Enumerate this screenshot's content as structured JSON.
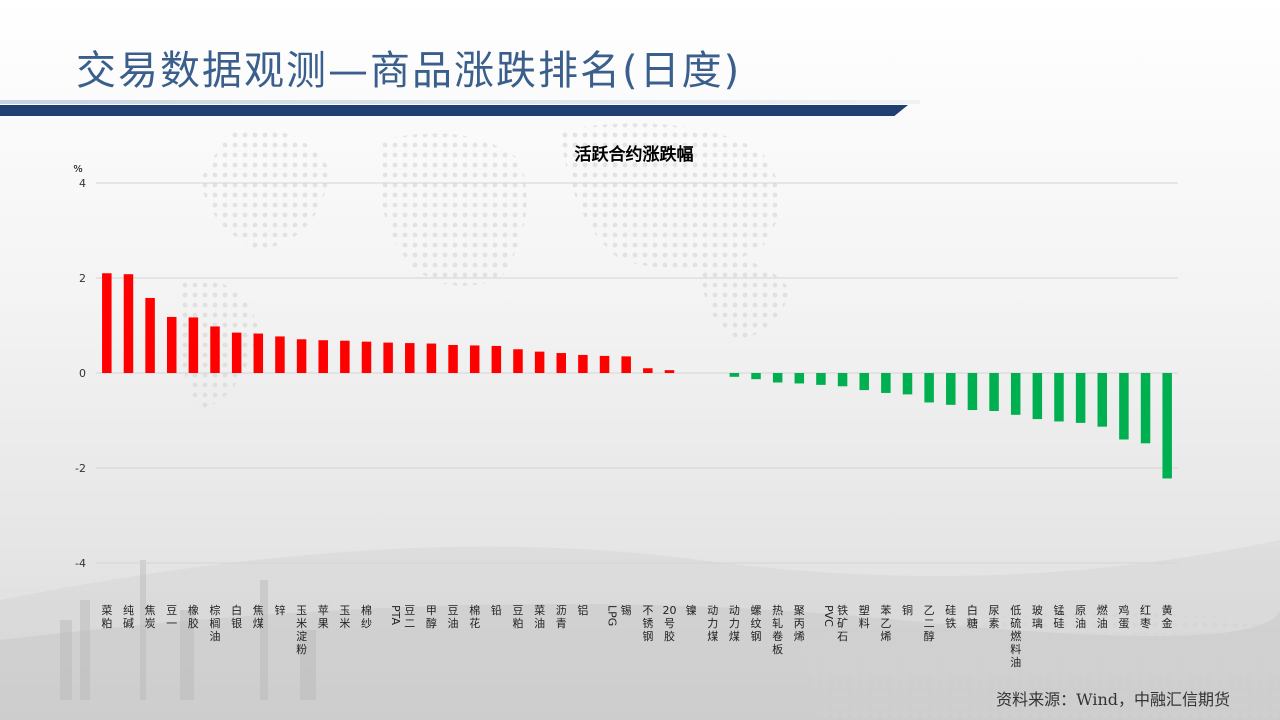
{
  "page_title": "交易数据观测—商品涨跌排名(日度)",
  "source": "资料来源：Wind，中融汇信期货",
  "colors": {
    "up": "#ff0000",
    "down": "#00b050",
    "title": "#3a5f8c",
    "bar_accent": "#1f3f73"
  },
  "chart_data": {
    "type": "bar",
    "title": "活跃合约涨跌幅",
    "ylabel": "%",
    "ylim": [
      -4,
      4
    ],
    "yticks": [
      4,
      2,
      0,
      -2,
      -4
    ],
    "grid": true,
    "categories": [
      "菜粕",
      "纯碱",
      "焦炭",
      "豆一",
      "橡胶",
      "棕榈油",
      "白银",
      "焦煤",
      "锌",
      "玉米淀粉",
      "苹果",
      "玉米",
      "棉纱",
      "PTA",
      "豆二",
      "甲醇",
      "豆油",
      "棉花",
      "铅",
      "豆粕",
      "菜油",
      "沥青",
      "铝",
      "LPG",
      "锡",
      "不锈钢",
      "20号胶",
      "镍",
      "动力煤",
      "动力煤",
      "螺纹钢",
      "热轧卷板",
      "聚丙烯",
      "PVC",
      "铁矿石",
      "塑料",
      "苯乙烯",
      "铜",
      "乙二醇",
      "硅铁",
      "白糖",
      "尿素",
      "低硫燃料油",
      "玻璃",
      "锰硅",
      "原油",
      "燃油",
      "鸡蛋",
      "红枣",
      "黄金"
    ],
    "values": [
      2.1,
      2.08,
      1.58,
      1.18,
      1.17,
      0.98,
      0.85,
      0.83,
      0.77,
      0.71,
      0.69,
      0.68,
      0.66,
      0.64,
      0.63,
      0.62,
      0.59,
      0.58,
      0.57,
      0.5,
      0.45,
      0.42,
      0.38,
      0.36,
      0.35,
      0.1,
      0.06,
      0.0,
      0.0,
      -0.08,
      -0.13,
      -0.2,
      -0.22,
      -0.25,
      -0.28,
      -0.36,
      -0.42,
      -0.45,
      -0.62,
      -0.67,
      -0.78,
      -0.8,
      -0.88,
      -0.97,
      -1.02,
      -1.05,
      -1.13,
      -1.4,
      -1.48,
      -2.22
    ]
  }
}
